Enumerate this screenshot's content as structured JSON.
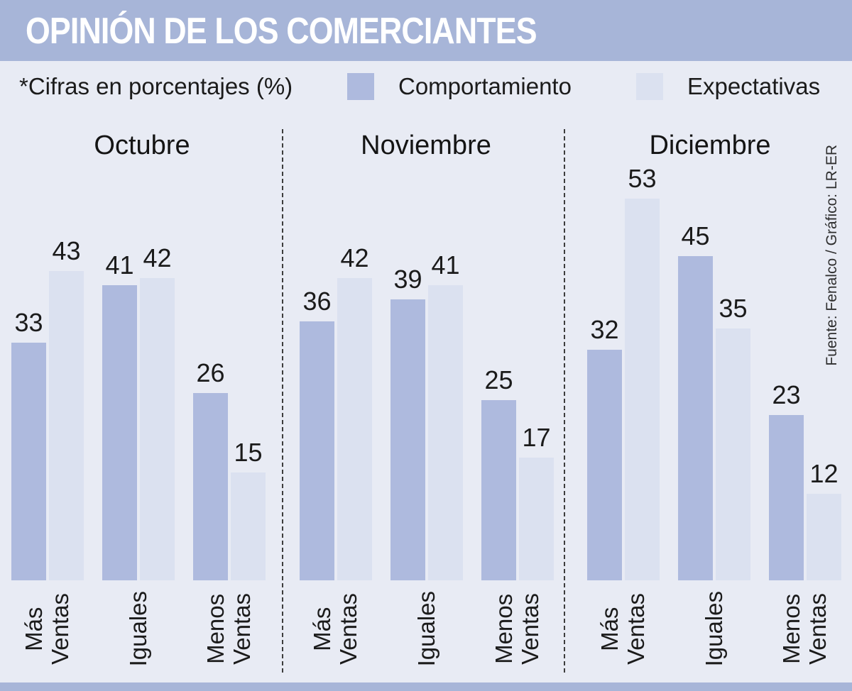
{
  "title": "OPINIÓN DE LOS COMERCIANTES",
  "note": "*Cifras en porcentajes (%)",
  "legend": [
    {
      "label": "Comportamiento",
      "color": "#aebade"
    },
    {
      "label": "Expectativas",
      "color": "#dbe1f0"
    }
  ],
  "source": "Fuente: Fenalco / Gráfico: LR-ER",
  "colors": {
    "header_band": "#a7b5d8",
    "footer_band": "#a7b5d8",
    "background": "#e8ebf4",
    "bar_comportamiento": "#aebade",
    "bar_expectativas": "#dbe1f0",
    "text": "#1b1b1b",
    "divider": "#3d3d3d"
  },
  "chart_data": {
    "type": "bar",
    "unit": "percent",
    "ylim": [
      0,
      60
    ],
    "grid": false,
    "legend_position": "top",
    "categories": [
      "Más Ventas",
      "Iguales",
      "Menos Ventas"
    ],
    "category_display": [
      "Más\nVentas",
      "Iguales",
      "Menos\nVentas"
    ],
    "panels": [
      {
        "month": "Octubre",
        "series": [
          {
            "name": "Comportamiento",
            "values": [
              33,
              41,
              26
            ]
          },
          {
            "name": "Expectativas",
            "values": [
              43,
              42,
              15
            ]
          }
        ]
      },
      {
        "month": "Noviembre",
        "series": [
          {
            "name": "Comportamiento",
            "values": [
              36,
              39,
              25
            ]
          },
          {
            "name": "Expectativas",
            "values": [
              42,
              41,
              17
            ]
          }
        ]
      },
      {
        "month": "Diciembre",
        "series": [
          {
            "name": "Comportamiento",
            "values": [
              32,
              45,
              23
            ]
          },
          {
            "name": "Expectativas",
            "values": [
              53,
              35,
              12
            ]
          }
        ]
      }
    ]
  }
}
